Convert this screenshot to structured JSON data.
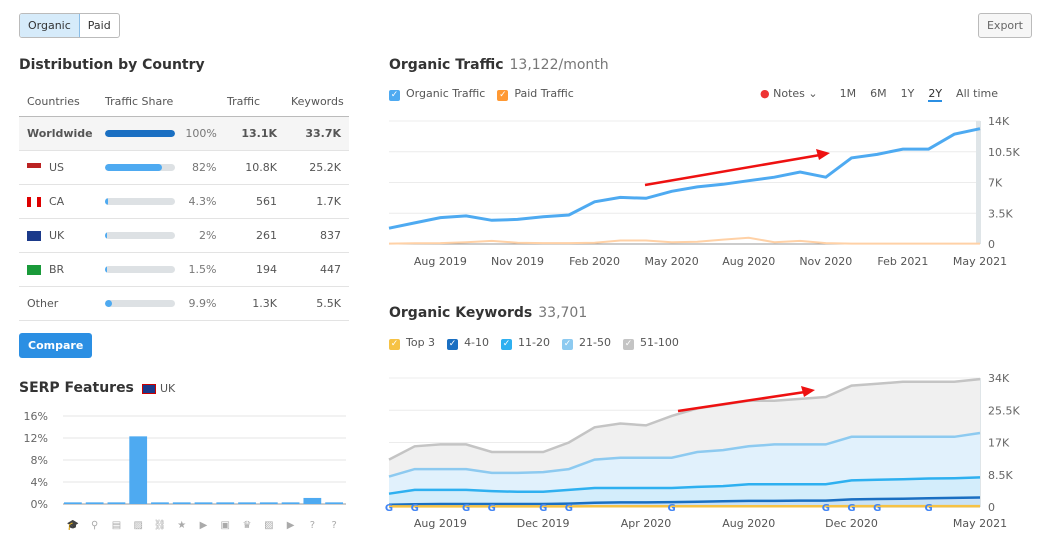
{
  "top": {
    "tabs": [
      "Organic",
      "Paid"
    ],
    "active_tab": "Organic",
    "export": "Export"
  },
  "country": {
    "title": "Distribution by Country",
    "headers": [
      "Countries",
      "Traffic Share",
      "Traffic",
      "Keywords"
    ],
    "rows": [
      {
        "name": "Worldwide",
        "share": 100,
        "share_label": "100%",
        "traffic": "13.1K",
        "keywords": "33.7K",
        "flag": ""
      },
      {
        "name": "US",
        "share": 82,
        "share_label": "82%",
        "traffic": "10.8K",
        "keywords": "25.2K",
        "flag": "us"
      },
      {
        "name": "CA",
        "share": 4.3,
        "share_label": "4.3%",
        "traffic": "561",
        "keywords": "1.7K",
        "flag": "ca"
      },
      {
        "name": "UK",
        "share": 2,
        "share_label": "2%",
        "traffic": "261",
        "keywords": "837",
        "flag": "uk"
      },
      {
        "name": "BR",
        "share": 1.5,
        "share_label": "1.5%",
        "traffic": "194",
        "keywords": "447",
        "flag": "br"
      },
      {
        "name": "Other",
        "share": 9.9,
        "share_label": "9.9%",
        "traffic": "1.3K",
        "keywords": "5.5K",
        "flag": ""
      }
    ],
    "compare": "Compare"
  },
  "serp": {
    "title": "SERP Features",
    "region": "UK"
  },
  "traffic": {
    "title": "Organic Traffic",
    "value": "13,122/month",
    "legend": [
      "Organic Traffic",
      "Paid Traffic"
    ],
    "notes": "Notes",
    "ranges": [
      "1M",
      "6M",
      "1Y",
      "2Y",
      "All time"
    ],
    "active_range": "2Y"
  },
  "keywords": {
    "title": "Organic Keywords",
    "value": "33,701",
    "legend": [
      "Top 3",
      "4-10",
      "11-20",
      "21-50",
      "51-100"
    ]
  },
  "colors": {
    "organic": "#4eaaf1",
    "paid": "#ff9933",
    "top3": "#f6c244",
    "k4_10": "#1a6fc2",
    "k11_20": "#2eb0f0",
    "k21_50": "#8dcaf0",
    "k51_100": "#c4c4c4",
    "arrow": "#ee1111"
  },
  "chart_data": [
    {
      "type": "bar",
      "title": "SERP Features",
      "categories": [
        "featured-snippet",
        "local-pack",
        "top-stories",
        "image-pack",
        "sitelinks",
        "reviews",
        "video",
        "featured-video",
        "knowledge-panel",
        "thumbnail",
        "video-carousel",
        "faq",
        "people-also-ask"
      ],
      "values": [
        0.3,
        0.3,
        0.3,
        12.3,
        0.3,
        0.3,
        0.3,
        0.3,
        0.3,
        0.3,
        0.3,
        1.1,
        0.3
      ],
      "yticks": [
        "0%",
        "4%",
        "8%",
        "12%",
        "16%"
      ],
      "ylim": [
        0,
        16
      ]
    },
    {
      "type": "line",
      "title": "Organic Traffic",
      "x": [
        "Jun 2019",
        "Jul 2019",
        "Aug 2019",
        "Sep 2019",
        "Oct 2019",
        "Nov 2019",
        "Dec 2019",
        "Jan 2020",
        "Feb 2020",
        "Mar 2020",
        "Apr 2020",
        "May 2020",
        "Jun 2020",
        "Jul 2020",
        "Aug 2020",
        "Sep 2020",
        "Oct 2020",
        "Nov 2020",
        "Dec 2020",
        "Jan 2021",
        "Feb 2021",
        "Mar 2021",
        "Apr 2021",
        "May 2021"
      ],
      "series": [
        {
          "name": "Organic Traffic",
          "values": [
            1800,
            2400,
            3000,
            3200,
            2700,
            2800,
            3100,
            3300,
            4800,
            5300,
            5200,
            6000,
            6500,
            6800,
            7200,
            7600,
            8200,
            7600,
            9800,
            10200,
            10800,
            10800,
            12500,
            13122
          ]
        },
        {
          "name": "Paid Traffic",
          "values": [
            50,
            80,
            100,
            200,
            350,
            150,
            100,
            100,
            150,
            400,
            400,
            200,
            250,
            500,
            700,
            200,
            350,
            100,
            50,
            50,
            50,
            50,
            50,
            50
          ]
        }
      ],
      "xticks": [
        "Aug 2019",
        "Nov 2019",
        "Feb 2020",
        "May 2020",
        "Aug 2020",
        "Nov 2020",
        "Feb 2021",
        "May 2021"
      ],
      "yticks": [
        "0",
        "3.5K",
        "7K",
        "10.5K",
        "14K"
      ],
      "ylim": [
        0,
        14000
      ]
    },
    {
      "type": "area",
      "title": "Organic Keywords",
      "x": [
        "Jun 2019",
        "Jul 2019",
        "Aug 2019",
        "Sep 2019",
        "Oct 2019",
        "Nov 2019",
        "Dec 2019",
        "Jan 2020",
        "Feb 2020",
        "Mar 2020",
        "Apr 2020",
        "May 2020",
        "Jun 2020",
        "Jul 2020",
        "Aug 2020",
        "Sep 2020",
        "Oct 2020",
        "Nov 2020",
        "Dec 2020",
        "Jan 2021",
        "Feb 2021",
        "Mar 2021",
        "Apr 2021",
        "May 2021"
      ],
      "series": [
        {
          "name": "51-100",
          "values": [
            12500,
            16000,
            16500,
            16500,
            14500,
            14500,
            14500,
            17000,
            21000,
            22000,
            21500,
            24000,
            26000,
            27000,
            28000,
            28000,
            28500,
            29000,
            32000,
            32500,
            33000,
            33000,
            33000,
            33701
          ]
        },
        {
          "name": "21-50",
          "values": [
            8000,
            10000,
            10000,
            10000,
            9000,
            9000,
            9200,
            10000,
            12500,
            13000,
            13000,
            13000,
            14500,
            15000,
            16000,
            16500,
            16500,
            16500,
            18500,
            18500,
            18500,
            18500,
            18500,
            19500
          ]
        },
        {
          "name": "11-20",
          "values": [
            3500,
            4500,
            4500,
            4500,
            4200,
            4000,
            4000,
            4500,
            5000,
            5000,
            5000,
            5000,
            5300,
            5500,
            6000,
            6000,
            6000,
            6000,
            7000,
            7200,
            7300,
            7500,
            7600,
            7800
          ]
        },
        {
          "name": "4-10",
          "values": [
            600,
            700,
            800,
            800,
            800,
            800,
            800,
            900,
            1100,
            1200,
            1200,
            1300,
            1400,
            1500,
            1600,
            1600,
            1700,
            1700,
            2000,
            2100,
            2200,
            2300,
            2400,
            2500
          ]
        },
        {
          "name": "Top 3",
          "values": [
            150,
            150,
            150,
            150,
            150,
            150,
            150,
            150,
            200,
            200,
            200,
            200,
            200,
            200,
            200,
            200,
            200,
            200,
            250,
            250,
            250,
            250,
            250,
            250
          ]
        }
      ],
      "xticks": [
        "Aug 2019",
        "Dec 2019",
        "Apr 2020",
        "Aug 2020",
        "Dec 2020",
        "May 2021"
      ],
      "yticks": [
        "0",
        "8.5K",
        "17K",
        "25.5K",
        "34K"
      ],
      "ylim": [
        0,
        34000
      ]
    }
  ]
}
